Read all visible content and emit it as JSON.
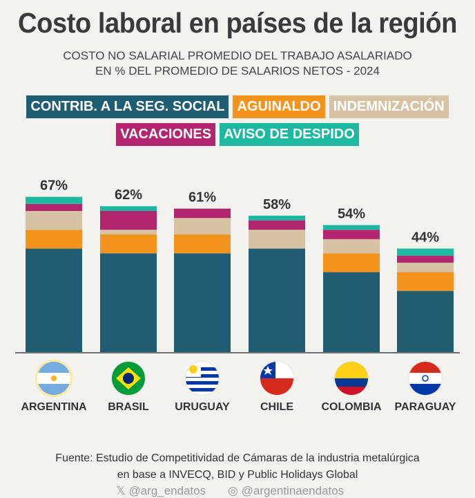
{
  "header": {
    "title": "Costo laboral en países de la región",
    "subtitle_line1": "COSTO NO SALARIAL PROMEDIO DEL TRABAJO ASALARIADO",
    "subtitle_line2": "EN % DEL PROMEDIO DE SALARIOS NETOS - 2024"
  },
  "legend": [
    {
      "label": "CONTRIB. A LA SEG. SOCIAL",
      "color": "#1f5e72"
    },
    {
      "label": "AGUINALDO",
      "color": "#f5941c"
    },
    {
      "label": "INDEMNIZACIÓN",
      "color": "#d6c3a3"
    },
    {
      "label": "VACACIONES",
      "color": "#b2266e"
    },
    {
      "label": "AVISO DE DESPIDO",
      "color": "#1cb9a0"
    }
  ],
  "chart_data": {
    "type": "bar",
    "stacked": true,
    "categories": [
      "ARGENTINA",
      "BRASIL",
      "URUGUAY",
      "CHILE",
      "COLOMBIA",
      "PARAGUAY"
    ],
    "totals_labels": [
      "67%",
      "62%",
      "61%",
      "58%",
      "54%",
      "44%"
    ],
    "totals": [
      67,
      62,
      61,
      58,
      54,
      44
    ],
    "series": [
      {
        "name": "CONTRIB. A LA SEG. SOCIAL",
        "color": "#1f5e72",
        "values": [
          44,
          42,
          42,
          44,
          34,
          26
        ]
      },
      {
        "name": "AGUINALDO",
        "color": "#f5941c",
        "values": [
          8,
          8,
          8,
          0,
          8,
          8
        ]
      },
      {
        "name": "INDEMNIZACIÓN",
        "color": "#d6c3a3",
        "values": [
          8,
          2,
          7,
          8,
          6,
          4
        ]
      },
      {
        "name": "VACACIONES",
        "color": "#b2266e",
        "values": [
          3,
          8,
          4,
          4,
          4,
          3
        ]
      },
      {
        "name": "AVISO DE DESPIDO",
        "color": "#1cb9a0",
        "values": [
          3,
          2,
          0,
          2,
          2,
          3
        ]
      }
    ],
    "ylim": [
      0,
      70
    ],
    "grid": false
  },
  "flags": [
    "argentina-flag-icon",
    "brasil-flag-icon",
    "uruguay-flag-icon",
    "chile-flag-icon",
    "colombia-flag-icon",
    "paraguay-flag-icon"
  ],
  "footer": {
    "source_line1": "Fuente: Estudio de Competitividad de Cámaras de la industria metalúrgica",
    "source_line2": "en base a INVECQ, BID y Public Holidays Global",
    "twitter_handle": "@arg_endatos",
    "instagram_handle": "@argentinaendatos"
  }
}
